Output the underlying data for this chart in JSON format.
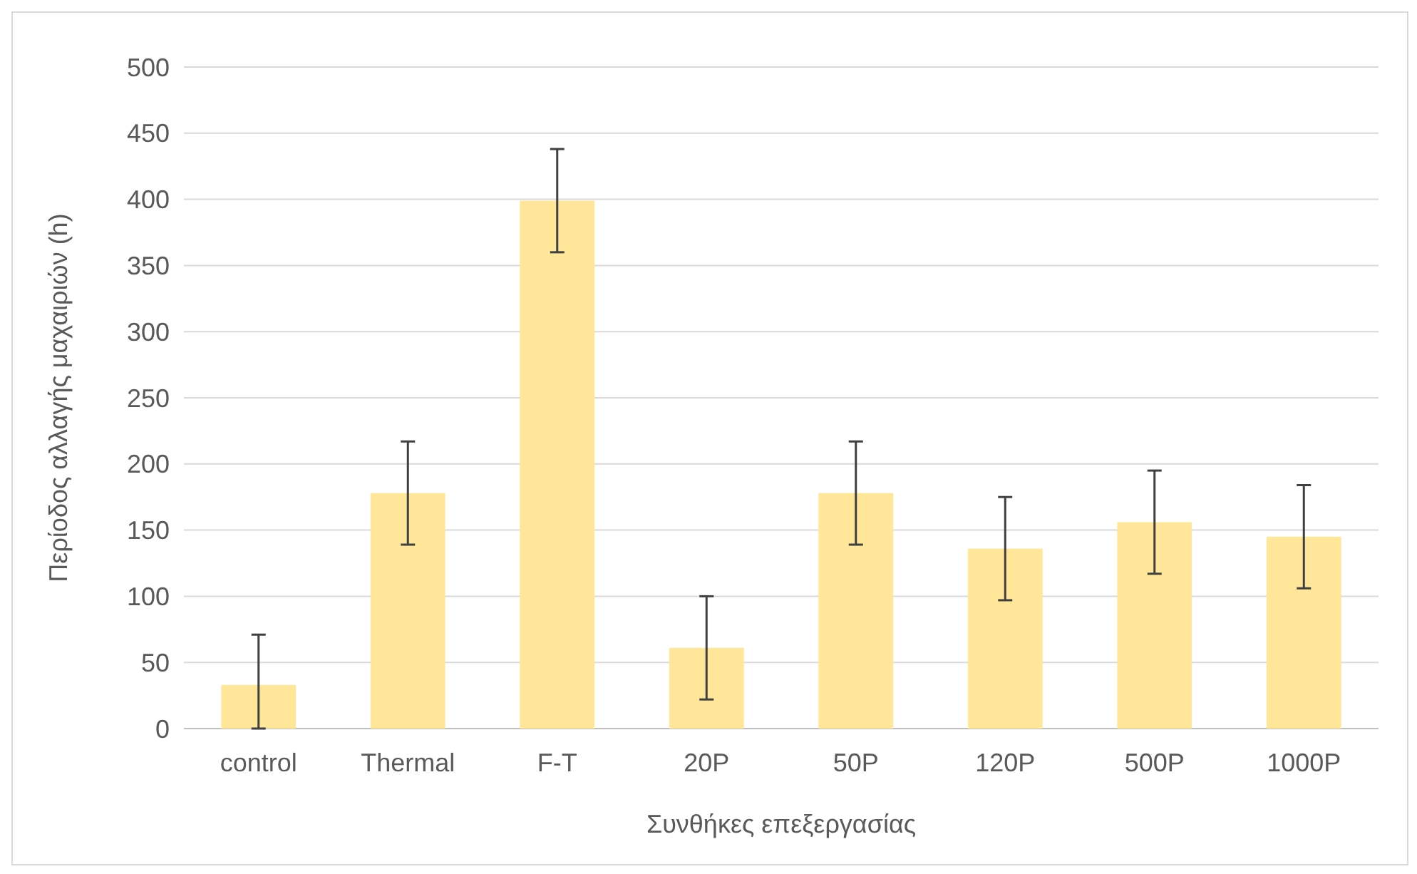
{
  "chart_data": {
    "type": "bar",
    "xlabel": "Συνθήκες επεξεργασίας",
    "ylabel": "Περίοδος αλλαγής μαχαιριών (h)",
    "categories": [
      "control",
      "Thermal",
      "F-T",
      "20P",
      "50P",
      "120P",
      "500P",
      "1000P"
    ],
    "values": [
      33,
      178,
      399,
      61,
      178,
      136,
      156,
      145
    ],
    "errors": [
      [
        0,
        71
      ],
      39,
      39,
      39,
      39,
      39,
      39,
      39
    ],
    "color": "#ffe699",
    "ylim": [
      0,
      500
    ],
    "yticks": [
      0,
      50,
      100,
      150,
      200,
      250,
      300,
      350,
      400,
      450,
      500
    ],
    "grid": "y"
  }
}
